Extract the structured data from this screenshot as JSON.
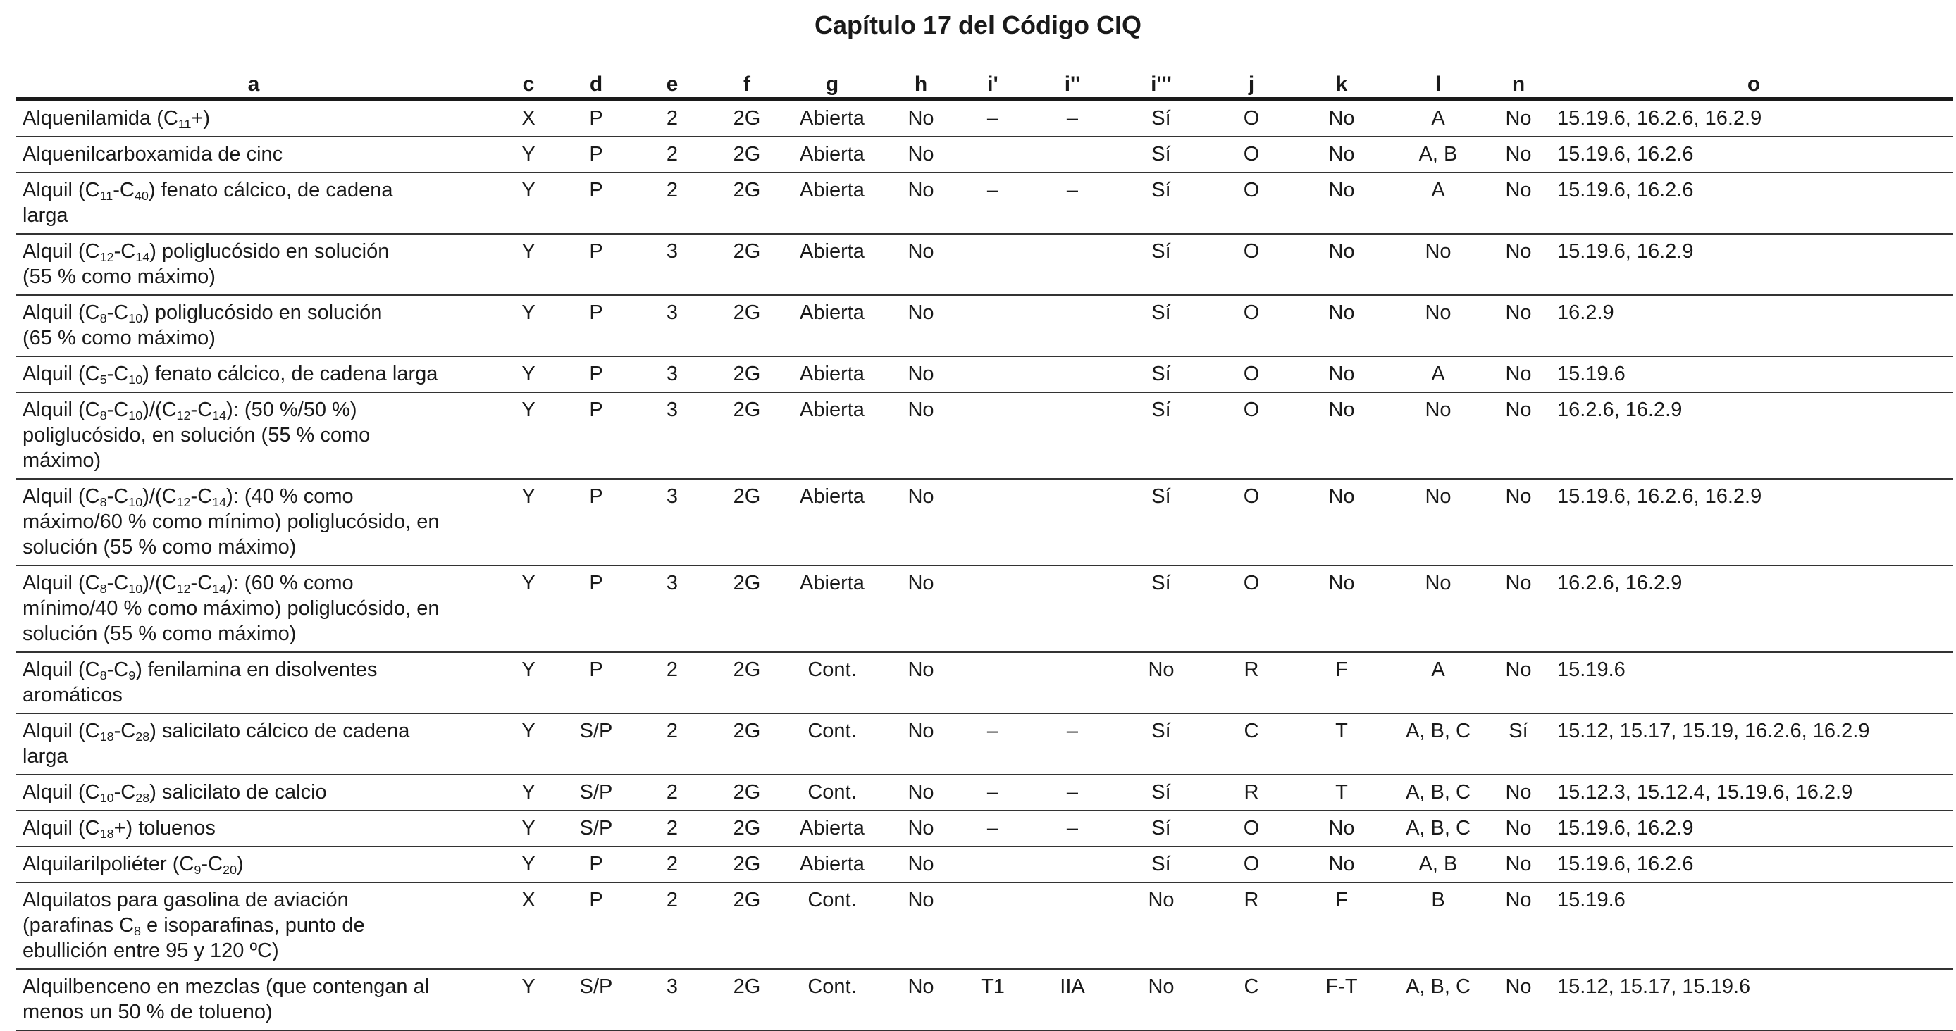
{
  "title": "Capítulo 17 del Código CIQ",
  "columns": [
    "a",
    "c",
    "d",
    "e",
    "f",
    "g",
    "h",
    "i'",
    "i''",
    "i'''",
    "j",
    "k",
    "l",
    "n",
    "o"
  ],
  "rows": [
    {
      "name": [
        "Alquenilamida (C<sub>11</sub>+)"
      ],
      "c": "X",
      "d": "P",
      "e": "2",
      "f": "2G",
      "g": "Abierta",
      "h": "No",
      "i1": "–",
      "i2": "–",
      "i3": "Sí",
      "j": "O",
      "k": "No",
      "l": "A",
      "n": "No",
      "o": "15.19.6, 16.2.6, 16.2.9"
    },
    {
      "name": [
        "Alquenilcarboxamida de cinc"
      ],
      "c": "Y",
      "d": "P",
      "e": "2",
      "f": "2G",
      "g": "Abierta",
      "h": "No",
      "i1": "",
      "i2": "",
      "i3": "Sí",
      "j": "O",
      "k": "No",
      "l": "A, B",
      "n": "No",
      "o": "15.19.6, 16.2.6"
    },
    {
      "name": [
        "Alquil (C<sub>11</sub>-C<sub>40</sub>) fenato cálcico, de cadena",
        "larga"
      ],
      "c": "Y",
      "d": "P",
      "e": "2",
      "f": "2G",
      "g": "Abierta",
      "h": "No",
      "i1": "–",
      "i2": "–",
      "i3": "Sí",
      "j": "O",
      "k": "No",
      "l": "A",
      "n": "No",
      "o": "15.19.6, 16.2.6"
    },
    {
      "name": [
        "Alquil (C<sub>12</sub>-C<sub>14</sub>) poliglucósido en solución",
        "(55 % como máximo)"
      ],
      "c": "Y",
      "d": "P",
      "e": "3",
      "f": "2G",
      "g": "Abierta",
      "h": "No",
      "i1": "",
      "i2": "",
      "i3": "Sí",
      "j": "O",
      "k": "No",
      "l": "No",
      "n": "No",
      "o": "15.19.6, 16.2.9"
    },
    {
      "name": [
        "Alquil (C<sub>8</sub>-C<sub>10</sub>) poliglucósido en solución",
        "(65 % como máximo)"
      ],
      "c": "Y",
      "d": "P",
      "e": "3",
      "f": "2G",
      "g": "Abierta",
      "h": "No",
      "i1": "",
      "i2": "",
      "i3": "Sí",
      "j": "O",
      "k": "No",
      "l": "No",
      "n": "No",
      "o": "16.2.9"
    },
    {
      "name": [
        "Alquil (C<sub>5</sub>-C<sub>10</sub>) fenato cálcico, de cadena larga"
      ],
      "c": "Y",
      "d": "P",
      "e": "3",
      "f": "2G",
      "g": "Abierta",
      "h": "No",
      "i1": "",
      "i2": "",
      "i3": "Sí",
      "j": "O",
      "k": "No",
      "l": "A",
      "n": "No",
      "o": "15.19.6"
    },
    {
      "name": [
        "Alquil (C<sub>8</sub>-C<sub>10</sub>)/(C<sub>12</sub>-C<sub>14</sub>): (50 %/50 %)",
        "poliglucósido, en solución (55 % como",
        "máximo)"
      ],
      "c": "Y",
      "d": "P",
      "e": "3",
      "f": "2G",
      "g": "Abierta",
      "h": "No",
      "i1": "",
      "i2": "",
      "i3": "Sí",
      "j": "O",
      "k": "No",
      "l": "No",
      "n": "No",
      "o": "16.2.6, 16.2.9"
    },
    {
      "name": [
        "Alquil (C<sub>8</sub>-C<sub>10</sub>)/(C<sub>12</sub>-C<sub>14</sub>): (40 % como",
        "máximo/60 % como mínimo) poliglucósido, en",
        "solución (55 % como máximo)"
      ],
      "c": "Y",
      "d": "P",
      "e": "3",
      "f": "2G",
      "g": "Abierta",
      "h": "No",
      "i1": "",
      "i2": "",
      "i3": "Sí",
      "j": "O",
      "k": "No",
      "l": "No",
      "n": "No",
      "o": "15.19.6, 16.2.6,  16.2.9"
    },
    {
      "name": [
        "Alquil (C<sub>8</sub>-C<sub>10</sub>)/(C<sub>12</sub>-C<sub>14</sub>): (60 % como",
        "mínimo/40 % como máximo) poliglucósido, en",
        "solución (55 % como máximo)"
      ],
      "c": "Y",
      "d": "P",
      "e": "3",
      "f": "2G",
      "g": "Abierta",
      "h": "No",
      "i1": "",
      "i2": "",
      "i3": "Sí",
      "j": "O",
      "k": "No",
      "l": "No",
      "n": "No",
      "o": "16.2.6, 16.2.9"
    },
    {
      "name": [
        "Alquil (C<sub>8</sub>-C<sub>9</sub>) fenilamina en disolventes",
        "aromáticos"
      ],
      "c": "Y",
      "d": "P",
      "e": "2",
      "f": "2G",
      "g": "Cont.",
      "h": "No",
      "i1": "",
      "i2": "",
      "i3": "No",
      "j": "R",
      "k": "F",
      "l": "A",
      "n": "No",
      "o": "15.19.6"
    },
    {
      "name": [
        "Alquil (C<sub>18</sub>-C<sub>28</sub>) salicilato cálcico de cadena",
        "larga"
      ],
      "c": "Y",
      "d": "S/P",
      "e": "2",
      "f": "2G",
      "g": "Cont.",
      "h": "No",
      "i1": "–",
      "i2": "–",
      "i3": "Sí",
      "j": "C",
      "k": "T",
      "l": "A, B, C",
      "n": "Sí",
      "o": "15.12, 15.17, 15.19, 16.2.6, 16.2.9"
    },
    {
      "name": [
        "Alquil (C<sub>10</sub>-C<sub>28</sub>) salicilato de calcio"
      ],
      "c": "Y",
      "d": "S/P",
      "e": "2",
      "f": "2G",
      "g": "Cont.",
      "h": "No",
      "i1": "–",
      "i2": "–",
      "i3": "Sí",
      "j": "R",
      "k": "T",
      "l": "A, B, C",
      "n": "No",
      "o": "15.12.3, 15.12.4, 15.19.6, 16.2.9"
    },
    {
      "name": [
        "Alquil (C<sub>18</sub>+) toluenos"
      ],
      "c": "Y",
      "d": "S/P",
      "e": "2",
      "f": "2G",
      "g": "Abierta",
      "h": "No",
      "i1": "–",
      "i2": "–",
      "i3": "Sí",
      "j": "O",
      "k": "No",
      "l": "A, B, C",
      "n": "No",
      "o": "15.19.6, 16.2.9"
    },
    {
      "name": [
        "Alquilarilpoliéter (C<sub>9</sub>-C<sub>20</sub>)"
      ],
      "c": "Y",
      "d": "P",
      "e": "2",
      "f": "2G",
      "g": "Abierta",
      "h": "No",
      "i1": "",
      "i2": "",
      "i3": "Sí",
      "j": "O",
      "k": "No",
      "l": "A, B",
      "n": "No",
      "o": "15.19.6, 16.2.6"
    },
    {
      "name": [
        "Alquilatos para gasolina de aviación",
        "(parafinas C<sub>8</sub> e isoparafinas, punto de",
        "ebullición entre 95 y 120 ºC)"
      ],
      "c": "X",
      "d": "P",
      "e": "2",
      "f": "2G",
      "g": "Cont.",
      "h": "No",
      "i1": "",
      "i2": "",
      "i3": "No",
      "j": "R",
      "k": "F",
      "l": "B",
      "n": "No",
      "o": "15.19.6"
    },
    {
      "name": [
        "Alquilbenceno en mezclas (que contengan al",
        "menos un 50 % de tolueno)"
      ],
      "c": "Y",
      "d": "S/P",
      "e": "3",
      "f": "2G",
      "g": "Cont.",
      "h": "No",
      "i1": "T1",
      "i2": "IIA",
      "i3": "No",
      "j": "C",
      "k": "F-T",
      "l": "A, B, C",
      "n": "No",
      "o": "15.12, 15.17, 15.19.6"
    }
  ]
}
